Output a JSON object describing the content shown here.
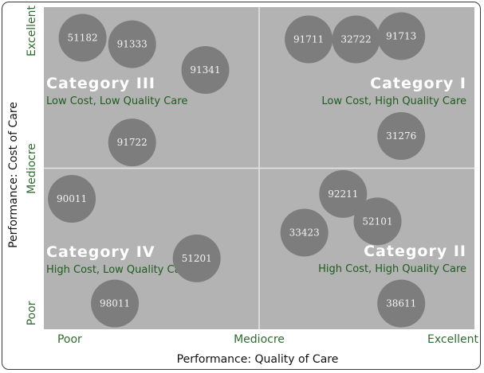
{
  "chart_data": {
    "type": "scatter",
    "title": "",
    "xlabel": "Performance: Quality of Care",
    "ylabel": "Performance: Cost of Care",
    "xlim": [
      0,
      2
    ],
    "ylim": [
      0,
      2
    ],
    "x_ticks": [
      {
        "value": 0.12,
        "label": "Poor"
      },
      {
        "value": 1.0,
        "label": "Mediocre"
      },
      {
        "value": 1.9,
        "label": "Excellent"
      }
    ],
    "y_ticks": [
      {
        "value": 0.1,
        "label": "Poor"
      },
      {
        "value": 1.0,
        "label": "Mediocre"
      },
      {
        "value": 1.85,
        "label": "Excellent"
      }
    ],
    "quadrants": [
      {
        "id": "cat3",
        "title": "Category III",
        "subtitle": "Low Cost, Low Quality Care"
      },
      {
        "id": "cat1",
        "title": "Category I",
        "subtitle": "Low Cost, High Quality Care"
      },
      {
        "id": "cat4",
        "title": "Category IV",
        "subtitle": "High Cost, Low Quality Care"
      },
      {
        "id": "cat2",
        "title": "Category II",
        "subtitle": "High Cost, High Quality Care"
      }
    ],
    "points": [
      {
        "label": "51182",
        "x": 0.18,
        "y": 1.81
      },
      {
        "label": "91333",
        "x": 0.41,
        "y": 1.77
      },
      {
        "label": "91341",
        "x": 0.75,
        "y": 1.61
      },
      {
        "label": "91722",
        "x": 0.41,
        "y": 1.16
      },
      {
        "label": "91711",
        "x": 1.23,
        "y": 1.8
      },
      {
        "label": "32722",
        "x": 1.45,
        "y": 1.8
      },
      {
        "label": "91713",
        "x": 1.66,
        "y": 1.82
      },
      {
        "label": "31276",
        "x": 1.66,
        "y": 1.2
      },
      {
        "label": "90011",
        "x": 0.13,
        "y": 0.81
      },
      {
        "label": "51201",
        "x": 0.71,
        "y": 0.44
      },
      {
        "label": "98011",
        "x": 0.33,
        "y": 0.16
      },
      {
        "label": "92211",
        "x": 1.39,
        "y": 0.84
      },
      {
        "label": "52101",
        "x": 1.55,
        "y": 0.67
      },
      {
        "label": "33423",
        "x": 1.21,
        "y": 0.6
      },
      {
        "label": "38611",
        "x": 1.66,
        "y": 0.16
      }
    ]
  },
  "colors": {
    "plot_background": "#b3b3b3",
    "bubble_fill": "#7d7d7d",
    "bubble_text": "#f2f2f2",
    "divider": "#e6e6e6",
    "category_title": "#ffffff",
    "category_subtitle": "#1e5c1e",
    "tick_text": "#2f6b2f"
  }
}
